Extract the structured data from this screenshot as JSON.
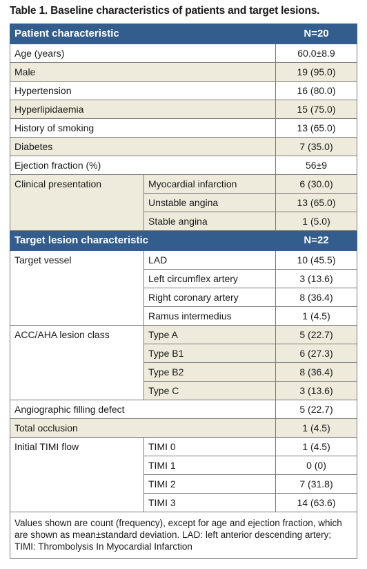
{
  "caption": "Table 1. Baseline characteristics of patients and target lesions.",
  "patient_header": {
    "label": "Patient characteristic",
    "n": "N=20"
  },
  "patient_rows": [
    {
      "label": "Age (years)",
      "value": "60.0±8.9"
    },
    {
      "label": "Male",
      "value": "19 (95.0)"
    },
    {
      "label": "Hypertension",
      "value": "16 (80.0)"
    },
    {
      "label": "Hyperlipidaemia",
      "value": "15 (75.0)"
    },
    {
      "label": "History of smoking",
      "value": "13 (65.0)"
    },
    {
      "label": "Diabetes",
      "value": "7 (35.0)"
    },
    {
      "label": "Ejection fraction (%)",
      "value": "56±9"
    }
  ],
  "clinical_presentation": {
    "label": "Clinical presentation",
    "items": [
      {
        "label": "Myocardial infarction",
        "value": "6 (30.0)"
      },
      {
        "label": "Unstable angina",
        "value": "13 (65.0)"
      },
      {
        "label": "Stable angina",
        "value": "1 (5.0)"
      }
    ]
  },
  "lesion_header": {
    "label": "Target lesion characteristic",
    "n": "N=22"
  },
  "target_vessel": {
    "label": "Target vessel",
    "items": [
      {
        "label": "LAD",
        "value": "10 (45.5)"
      },
      {
        "label": "Left circumflex artery",
        "value": "3 (13.6)"
      },
      {
        "label": "Right coronary artery",
        "value": "8 (36.4)"
      },
      {
        "label": "Ramus intermedius",
        "value": "1 (4.5)"
      }
    ]
  },
  "lesion_class": {
    "label": "ACC/AHA lesion class",
    "items": [
      {
        "label": "Type A",
        "value": "5 (22.7)"
      },
      {
        "label": "Type B1",
        "value": "6 (27.3)"
      },
      {
        "label": "Type B2",
        "value": "8 (36.4)"
      },
      {
        "label": "Type C",
        "value": "3 (13.6)"
      }
    ]
  },
  "filling_defect": {
    "label": "Angiographic filling defect",
    "value": "5 (22.7)"
  },
  "total_occlusion": {
    "label": "Total occlusion",
    "value": "1 (4.5)"
  },
  "timi_flow": {
    "label": "Initial TIMI flow",
    "items": [
      {
        "label": "TIMI 0",
        "value": "1 (4.5)"
      },
      {
        "label": "TIMI 1",
        "value": "0 (0)"
      },
      {
        "label": "TIMI 2",
        "value": "7 (31.8)"
      },
      {
        "label": "TIMI 3",
        "value": "14 (63.6)"
      }
    ]
  },
  "footnote": "Values shown are count (frequency), except for age and ejection fraction, which are shown as mean±standard deviation. LAD: left anterior descending artery; TIMI: Thrombolysis In Myocardial Infarction",
  "colors": {
    "header_bg": "#335d8c",
    "shade_bg": "#efebdc",
    "border": "#7a7a7a"
  }
}
